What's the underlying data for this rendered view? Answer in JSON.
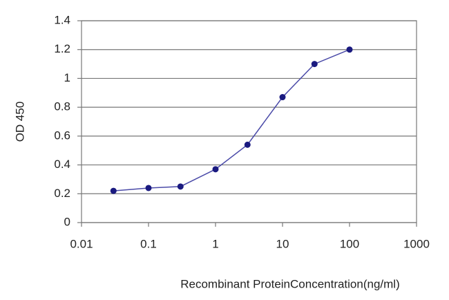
{
  "chart_data": {
    "type": "line",
    "x_label": "Recombinant ProteinConcentration(ng/ml)",
    "y_label": "OD 450",
    "x": [
      0.03,
      0.1,
      0.3,
      1,
      3,
      10,
      30,
      100
    ],
    "series": [
      {
        "color": "#1a1a80",
        "values": [
          0.22,
          0.24,
          0.25,
          0.37,
          0.54,
          0.87,
          1.1,
          1.2
        ]
      }
    ],
    "xlim": [
      0.01,
      1000
    ],
    "xticks": [
      0.01,
      0.1,
      1,
      10,
      100,
      1000
    ],
    "xscale": "log",
    "ylim": [
      0,
      1.4
    ],
    "yticks": [
      0,
      0.2,
      0.4,
      0.6,
      0.8,
      1,
      1.2,
      1.4
    ],
    "grid": true
  }
}
